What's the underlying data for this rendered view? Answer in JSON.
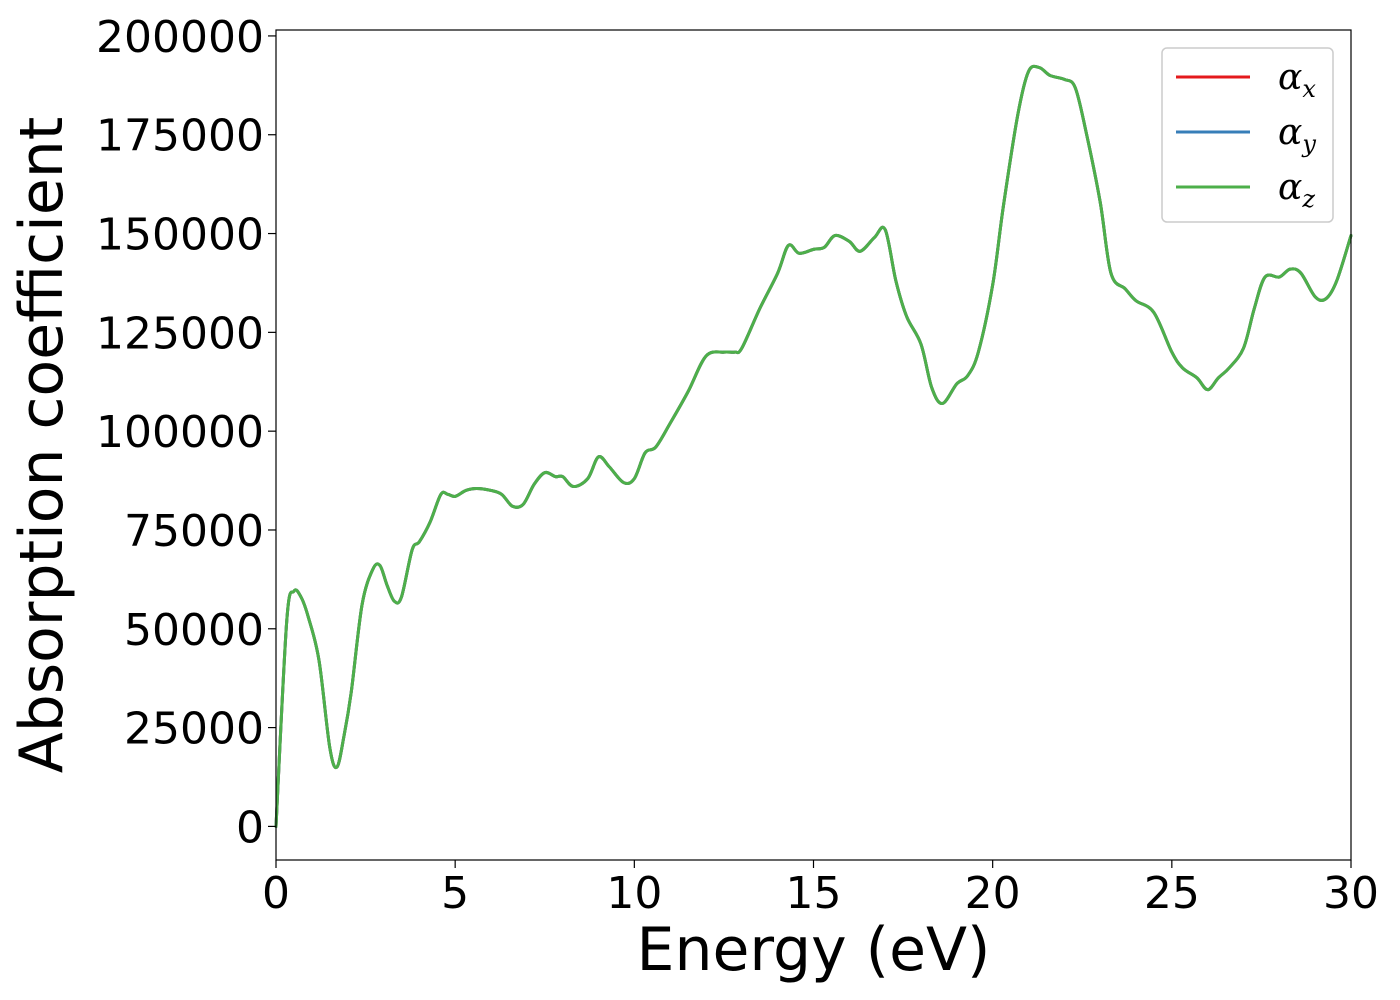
{
  "chart_data": {
    "type": "line",
    "title": "",
    "xlabel": "Energy (eV)",
    "ylabel": "Absorption coefficient",
    "xlim": [
      0,
      30
    ],
    "ylim": [
      -8500,
      201500
    ],
    "xticks": [
      0,
      5,
      10,
      15,
      20,
      25,
      30
    ],
    "xtick_labels": [
      "0",
      "5",
      "10",
      "15",
      "20",
      "25",
      "30"
    ],
    "yticks": [
      0,
      25000,
      50000,
      75000,
      100000,
      125000,
      150000,
      175000,
      200000
    ],
    "ytick_labels": [
      "0",
      "25000",
      "50000",
      "75000",
      "100000",
      "125000",
      "150000",
      "175000",
      "200000"
    ],
    "grid": false,
    "legend_position": "top-right",
    "x": [
      0,
      0.3,
      0.5,
      0.7,
      0.9,
      1.2,
      1.5,
      1.7,
      1.9,
      2.1,
      2.4,
      2.7,
      2.9,
      3.1,
      3.3,
      3.5,
      3.8,
      4.0,
      4.3,
      4.6,
      4.8,
      5.0,
      5.3,
      5.6,
      6.0,
      6.3,
      6.6,
      6.9,
      7.2,
      7.5,
      7.8,
      8.0,
      8.3,
      8.7,
      9.0,
      9.3,
      9.7,
      10.0,
      10.3,
      10.6,
      11.0,
      11.5,
      12.0,
      12.5,
      12.8,
      13.0,
      13.5,
      14.0,
      14.3,
      14.6,
      15.0,
      15.3,
      15.6,
      16.0,
      16.3,
      16.7,
      17.0,
      17.3,
      17.6,
      18.0,
      18.3,
      18.6,
      19.0,
      19.3,
      19.6,
      20.0,
      20.3,
      20.7,
      21.0,
      21.3,
      21.6,
      22.0,
      22.3,
      22.6,
      23.0,
      23.3,
      23.7,
      24.0,
      24.5,
      25.0,
      25.3,
      25.7,
      26.0,
      26.3,
      26.6,
      27.0,
      27.3,
      27.6,
      28.0,
      28.3,
      28.6,
      29.0,
      29.3,
      29.6,
      30.0
    ],
    "series": [
      {
        "name": "α_x",
        "label_base": "α",
        "label_sub": "x",
        "color": "#e41a1c",
        "values": [
          0,
          52000,
          59500,
          58000,
          53000,
          42000,
          20000,
          15000,
          23000,
          34000,
          56000,
          65000,
          66000,
          61000,
          57000,
          58000,
          70000,
          72000,
          77000,
          84000,
          84000,
          83500,
          85000,
          85500,
          85000,
          84000,
          81000,
          81500,
          86500,
          89500,
          88500,
          88500,
          86000,
          88000,
          93500,
          91000,
          87000,
          88000,
          94500,
          96000,
          102000,
          110000,
          119000,
          120000,
          120000,
          121000,
          131000,
          140000,
          147000,
          145000,
          146000,
          146500,
          149500,
          148000,
          145500,
          149000,
          151000,
          138000,
          129000,
          122000,
          111000,
          107000,
          112000,
          114000,
          120000,
          137000,
          157000,
          180000,
          191000,
          192000,
          190000,
          189000,
          187000,
          176000,
          158000,
          140000,
          136000,
          133000,
          130000,
          120000,
          116000,
          113500,
          110500,
          113500,
          116000,
          121000,
          131000,
          139000,
          139000,
          141000,
          140000,
          134000,
          133500,
          138000,
          149500
        ]
      },
      {
        "name": "α_y",
        "label_base": "α",
        "label_sub": "y",
        "color": "#377eb8",
        "values": [
          0,
          52000,
          59500,
          58000,
          53000,
          42000,
          20000,
          15000,
          23000,
          34000,
          56000,
          65000,
          66000,
          61000,
          57000,
          58000,
          70000,
          72000,
          77000,
          84000,
          84000,
          83500,
          85000,
          85500,
          85000,
          84000,
          81000,
          81500,
          86500,
          89500,
          88500,
          88500,
          86000,
          88000,
          93500,
          91000,
          87000,
          88000,
          94500,
          96000,
          102000,
          110000,
          119000,
          120000,
          120000,
          121000,
          131000,
          140000,
          147000,
          145000,
          146000,
          146500,
          149500,
          148000,
          145500,
          149000,
          151000,
          138000,
          129000,
          122000,
          111000,
          107000,
          112000,
          114000,
          120000,
          137000,
          157000,
          180000,
          191000,
          192000,
          190000,
          189000,
          187000,
          176000,
          158000,
          140000,
          136000,
          133000,
          130000,
          120000,
          116000,
          113500,
          110500,
          113500,
          116000,
          121000,
          131000,
          139000,
          139000,
          141000,
          140000,
          134000,
          133500,
          138000,
          149500
        ]
      },
      {
        "name": "α_z",
        "label_base": "α",
        "label_sub": "z",
        "color": "#4daf4a",
        "values": [
          0,
          52000,
          59500,
          58000,
          53000,
          42000,
          20000,
          15000,
          23000,
          34000,
          56000,
          65000,
          66000,
          61000,
          57000,
          58000,
          70000,
          72000,
          77000,
          84000,
          84000,
          83500,
          85000,
          85500,
          85000,
          84000,
          81000,
          81500,
          86500,
          89500,
          88500,
          88500,
          86000,
          88000,
          93500,
          91000,
          87000,
          88000,
          94500,
          96000,
          102000,
          110000,
          119000,
          120000,
          120000,
          121000,
          131000,
          140000,
          147000,
          145000,
          146000,
          146500,
          149500,
          148000,
          145500,
          149000,
          151000,
          138000,
          129000,
          122000,
          111000,
          107000,
          112000,
          114000,
          120000,
          137000,
          157000,
          180000,
          191000,
          192000,
          190000,
          189000,
          187000,
          176000,
          158000,
          140000,
          136000,
          133000,
          130000,
          120000,
          116000,
          113500,
          110500,
          113500,
          116000,
          121000,
          131000,
          139000,
          139000,
          141000,
          140000,
          134000,
          133500,
          138000,
          149500
        ]
      }
    ]
  }
}
